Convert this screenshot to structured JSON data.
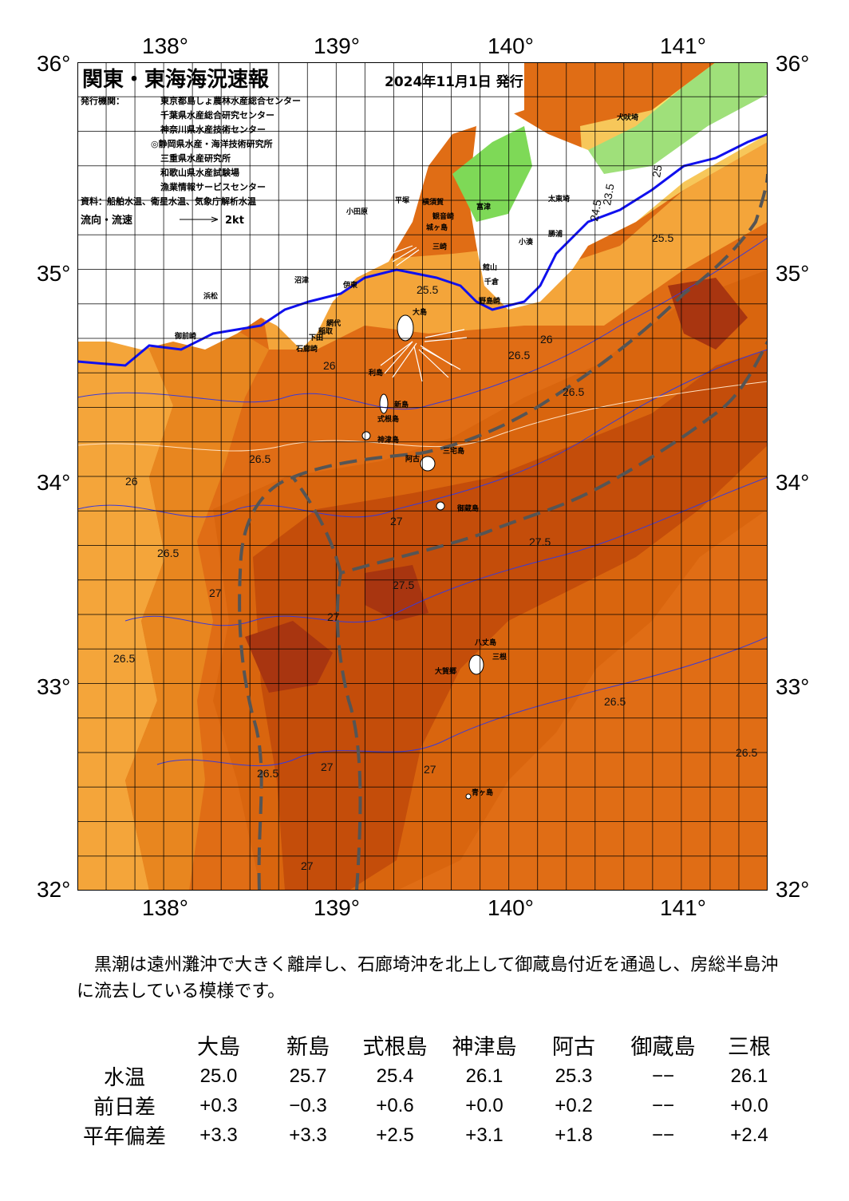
{
  "map": {
    "title": "関東・東海海況速報",
    "date": "2024年11月1日 発行",
    "issuer_label": "発行機関：",
    "issuers": [
      "東京都島しょ農林水産総合センター",
      "千葉県水産総合研究センター",
      "神奈川県水産技術センター",
      "◎静岡県水産・海洋技術研究所",
      "三重県水産研究所",
      "和歌山県水産試験場",
      "漁業情報サービスセンター"
    ],
    "sources": "資料：船舶水温、衛星水温、気象庁解析水温",
    "flow_label": "流向・流速",
    "flow_scale": "2kt",
    "lon_labels": [
      "138°",
      "139°",
      "140°",
      "141°"
    ],
    "lat_labels": [
      "36°",
      "35°",
      "34°",
      "33°",
      "32°"
    ],
    "place_names": [
      "犬吠埼",
      "太東埼",
      "勝浦",
      "小湊",
      "富津",
      "館山",
      "千倉",
      "野島崎",
      "平塚",
      "横須賀",
      "観音崎",
      "城ヶ島",
      "三崎",
      "小田原",
      "沼津",
      "伊東",
      "網代",
      "稲取",
      "下田",
      "石廊崎",
      "御前崎",
      "浜松",
      "大島",
      "利島",
      "新島",
      "式根島",
      "神津島",
      "三宅島",
      "阿古",
      "御蔵島",
      "八丈島",
      "三根",
      "大賀郷",
      "青ヶ島"
    ],
    "isotherm_labels": [
      "23.5",
      "24.5",
      "25",
      "25.5",
      "26",
      "26.5",
      "27",
      "27.5"
    ],
    "colors": {
      "t23": "#7ed957",
      "t24": "#d4e85a",
      "t24_5": "#fbe46b",
      "t25": "#f7c75a",
      "t25_5": "#f4a53a",
      "t26": "#e78320",
      "t26_5": "#d9650e",
      "t27": "#c44d0a",
      "t27_5": "#a83510",
      "t28": "#8e1e12",
      "kuroshio_axis": "#555555",
      "coastal_line": "#1010ee",
      "isotherm_thin": "#3a3ad8"
    }
  },
  "caption": "　黒潮は遠州灘沖で大きく離岸し、石廊埼沖を北上して御蔵島付近を通過し、房総半島沖に流去している模様です。",
  "table": {
    "headers": [
      "大島",
      "新島",
      "式根島",
      "神津島",
      "阿古",
      "御蔵島",
      "三根"
    ],
    "rows": [
      {
        "label": "水温",
        "values": [
          "25.0",
          "25.7",
          "25.4",
          "26.1",
          "25.3",
          "−−",
          "26.1"
        ]
      },
      {
        "label": "前日差",
        "values": [
          "+0.3",
          "−0.3",
          "+0.6",
          "+0.0",
          "+0.2",
          "−−",
          "+0.0"
        ]
      },
      {
        "label": "平年偏差",
        "values": [
          "+3.3",
          "+3.3",
          "+2.5",
          "+3.1",
          "+1.8",
          "−−",
          "+2.4"
        ]
      }
    ]
  }
}
